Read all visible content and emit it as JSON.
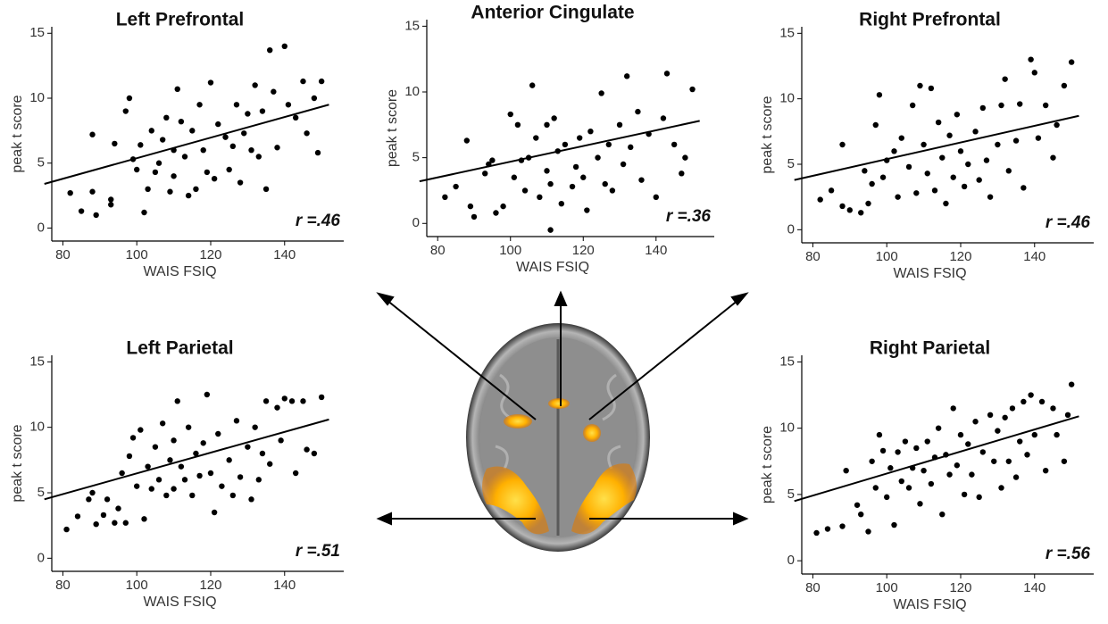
{
  "chart_data": [
    {
      "type": "scatter",
      "title": "Left Prefrontal",
      "xlabel": "WAIS FSIQ",
      "ylabel": "peak t score",
      "annotation": "r =.46",
      "color": "#000",
      "xlim": [
        77,
        156
      ],
      "ylim": [
        -1,
        15.5
      ],
      "xticks": [
        80,
        100,
        120,
        140
      ],
      "yticks": [
        0,
        5,
        10,
        15
      ],
      "x": [
        82,
        85,
        88,
        88,
        89,
        93,
        93,
        94,
        97,
        98,
        99,
        100,
        101,
        102,
        103,
        104,
        105,
        106,
        107,
        108,
        109,
        110,
        110,
        111,
        112,
        113,
        114,
        115,
        116,
        117,
        118,
        119,
        120,
        121,
        122,
        124,
        125,
        126,
        127,
        128,
        129,
        130,
        131,
        132,
        133,
        134,
        135,
        136,
        137,
        138,
        140,
        141,
        143,
        145,
        146,
        148,
        149,
        150
      ],
      "values": [
        2.7,
        1.3,
        7.2,
        2.8,
        1,
        1.8,
        2.2,
        6.5,
        9,
        10,
        5.3,
        4.5,
        6.4,
        1.2,
        3,
        7.5,
        4.3,
        5,
        6.8,
        8.5,
        2.8,
        6,
        4,
        10.7,
        8.2,
        5.5,
        2.5,
        7.5,
        3,
        9.5,
        6,
        4.3,
        11.2,
        3.8,
        8,
        7,
        4.5,
        6.3,
        9.5,
        3.5,
        7.3,
        8.8,
        6,
        11,
        5.5,
        9,
        3,
        13.7,
        10.5,
        6.2,
        14,
        9.5,
        8.5,
        11.3,
        7.3,
        10,
        5.8,
        11.3
      ],
      "fit_x": [
        75,
        152
      ],
      "fit_y": [
        3.4,
        9.5
      ]
    },
    {
      "type": "scatter",
      "title": "Anterior Cingulate",
      "xlabel": "WAIS FSIQ",
      "ylabel": "peak t score",
      "annotation": "r =.36",
      "color": "#000",
      "xlim": [
        77,
        156
      ],
      "ylim": [
        -1,
        15.5
      ],
      "xticks": [
        80,
        100,
        120,
        140
      ],
      "yticks": [
        0,
        5,
        10,
        15
      ],
      "x": [
        82,
        85,
        88,
        89,
        90,
        93,
        94,
        95,
        96,
        98,
        100,
        101,
        102,
        103,
        104,
        105,
        106,
        107,
        108,
        110,
        110,
        111,
        111,
        112,
        113,
        114,
        115,
        117,
        118,
        119,
        120,
        121,
        122,
        124,
        125,
        126,
        127,
        128,
        130,
        131,
        132,
        133,
        135,
        136,
        138,
        140,
        142,
        143,
        145,
        147,
        148,
        150
      ],
      "values": [
        2,
        2.8,
        6.3,
        1.3,
        0.5,
        3.8,
        4.5,
        4.8,
        0.8,
        1.3,
        8.3,
        3.5,
        7.5,
        4.8,
        2.5,
        5,
        10.5,
        6.5,
        2,
        4,
        7.5,
        3,
        -0.5,
        8,
        5.5,
        1.5,
        6,
        2.8,
        4.3,
        6.5,
        3.5,
        1,
        7,
        5,
        9.9,
        3,
        6,
        2.5,
        7.5,
        4.5,
        11.2,
        5.8,
        8.5,
        3.3,
        6.8,
        2,
        8,
        11.4,
        6,
        3.8,
        5,
        10.2
      ],
      "fit_x": [
        75,
        152
      ],
      "fit_y": [
        3.2,
        7.8
      ]
    },
    {
      "type": "scatter",
      "title": "Right Prefrontal",
      "xlabel": "WAIS FSIQ",
      "ylabel": "peak t score",
      "annotation": "r =.46",
      "color": "#000",
      "xlim": [
        77,
        156
      ],
      "ylim": [
        -1,
        15.5
      ],
      "xticks": [
        80,
        100,
        120,
        140
      ],
      "yticks": [
        0,
        5,
        10,
        15
      ],
      "x": [
        82,
        85,
        88,
        88,
        90,
        93,
        94,
        95,
        96,
        97,
        98,
        99,
        100,
        102,
        103,
        104,
        106,
        107,
        108,
        109,
        110,
        111,
        112,
        113,
        114,
        115,
        116,
        117,
        118,
        119,
        120,
        121,
        122,
        124,
        125,
        126,
        127,
        128,
        130,
        131,
        132,
        133,
        135,
        136,
        137,
        139,
        140,
        141,
        143,
        145,
        146,
        148,
        150
      ],
      "values": [
        2.3,
        3,
        6.5,
        1.8,
        1.5,
        1.3,
        4.5,
        2,
        3.5,
        8,
        10.3,
        4,
        5.3,
        6,
        2.5,
        7,
        4.8,
        9.5,
        2.8,
        11,
        6.5,
        4.3,
        10.8,
        3,
        8.2,
        5.5,
        2,
        7.2,
        4,
        8.8,
        6,
        3.3,
        5,
        7.5,
        3.8,
        9.3,
        5.3,
        2.5,
        6.5,
        9.5,
        11.5,
        4.5,
        6.8,
        9.6,
        3.2,
        13,
        12,
        7,
        9.5,
        5.5,
        8,
        11,
        12.8
      ],
      "fit_x": [
        75,
        152
      ],
      "fit_y": [
        3.8,
        8.7
      ]
    },
    {
      "type": "scatter",
      "title": "Left Parietal",
      "xlabel": "WAIS FSIQ",
      "ylabel": "peak t score",
      "annotation": "r =.51",
      "color": "#000",
      "xlim": [
        77,
        156
      ],
      "ylim": [
        -1,
        15.5
      ],
      "xticks": [
        80,
        100,
        120,
        140
      ],
      "yticks": [
        0,
        5,
        10,
        15
      ],
      "x": [
        81,
        84,
        87,
        88,
        89,
        91,
        92,
        94,
        95,
        96,
        97,
        98,
        99,
        100,
        101,
        102,
        103,
        104,
        105,
        106,
        107,
        108,
        109,
        110,
        110,
        111,
        112,
        113,
        114,
        115,
        116,
        117,
        118,
        119,
        120,
        121,
        122,
        123,
        125,
        126,
        127,
        128,
        130,
        131,
        132,
        133,
        134,
        135,
        136,
        138,
        139,
        140,
        142,
        143,
        145,
        146,
        148,
        150
      ],
      "values": [
        2.2,
        3.2,
        4.5,
        5,
        2.6,
        3.3,
        4.5,
        2.7,
        3.8,
        6.5,
        2.7,
        7.8,
        9.2,
        5.5,
        9.8,
        3,
        7,
        5.3,
        8.5,
        6,
        10.3,
        4.8,
        7.5,
        9,
        5.3,
        12,
        7,
        6,
        10,
        4.8,
        8,
        6.3,
        8.8,
        12.5,
        6.5,
        3.5,
        9.5,
        5.5,
        7.5,
        4.8,
        10.5,
        6.2,
        8.5,
        4.5,
        10,
        6,
        8,
        12,
        7.2,
        11.5,
        9,
        12.2,
        12,
        6.5,
        12,
        8.3,
        8,
        12.3
      ],
      "fit_x": [
        75,
        152
      ],
      "fit_y": [
        4.5,
        10.6
      ]
    },
    {
      "type": "scatter",
      "title": "Right Parietal",
      "xlabel": "WAIS FSIQ",
      "ylabel": "peak t score",
      "annotation": "r =.56",
      "color": "#000",
      "xlim": [
        77,
        156
      ],
      "ylim": [
        -1,
        15.5
      ],
      "xticks": [
        80,
        100,
        120,
        140
      ],
      "yticks": [
        0,
        5,
        10,
        15
      ],
      "x": [
        81,
        84,
        88,
        89,
        92,
        93,
        95,
        96,
        97,
        98,
        99,
        100,
        101,
        102,
        103,
        104,
        105,
        106,
        107,
        108,
        109,
        110,
        111,
        112,
        113,
        114,
        115,
        116,
        117,
        118,
        119,
        120,
        121,
        122,
        123,
        124,
        125,
        126,
        128,
        129,
        130,
        131,
        132,
        133,
        134,
        135,
        136,
        137,
        138,
        139,
        140,
        142,
        143,
        145,
        146,
        148,
        149,
        150
      ],
      "values": [
        2.1,
        2.4,
        2.6,
        6.8,
        4.2,
        3.5,
        2.2,
        7.5,
        5.5,
        9.5,
        8.3,
        4.8,
        7,
        2.7,
        8.2,
        6,
        9,
        5.5,
        7,
        8.5,
        4.3,
        6.8,
        9,
        5.8,
        7.8,
        10,
        3.5,
        8,
        6.5,
        11.5,
        7.2,
        9.5,
        5,
        8.8,
        6.5,
        10.5,
        4.8,
        8.2,
        11,
        7.5,
        9.8,
        5.5,
        10.8,
        7.5,
        11.5,
        6.3,
        9,
        12,
        8,
        12.5,
        9.5,
        12,
        6.8,
        11.5,
        9.5,
        7.5,
        11,
        13.3
      ],
      "fit_x": [
        75,
        152
      ],
      "fit_y": [
        4.5,
        10.9
      ]
    }
  ]
}
